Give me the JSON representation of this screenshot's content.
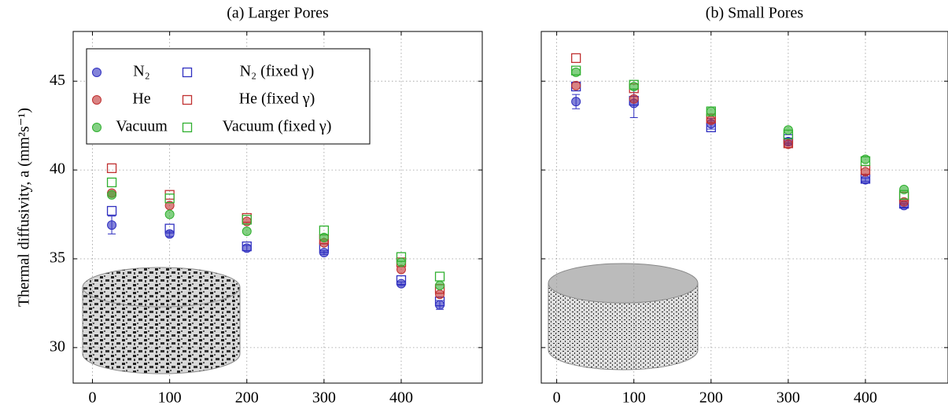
{
  "chart_data": [
    {
      "type": "scatter",
      "title": "(a) Larger Pores",
      "y_label": "Thermal diffusivity, a (mm²s⁻¹)",
      "x": [
        25,
        100,
        200,
        300,
        400,
        450
      ],
      "xlim": [
        -25,
        505
      ],
      "xticks": [
        0,
        100,
        200,
        300,
        400
      ],
      "ylim": [
        28,
        47.8
      ],
      "yticks": [
        30,
        35,
        40,
        45
      ],
      "show_ytick_labels": true,
      "grid": true,
      "legend": "upper left",
      "series": [
        {
          "name": "N₂",
          "color": "#3030c0",
          "marker": "circle",
          "values": [
            36.9,
            36.4,
            35.6,
            35.35,
            33.6,
            32.4
          ],
          "errors": [
            0.5,
            0.15,
            0.15,
            0.1,
            0.1,
            0.25
          ]
        },
        {
          "name": "N₂ (fixed γ)",
          "color": "#3030c0",
          "marker": "square",
          "values": [
            37.7,
            36.7,
            35.7,
            35.6,
            33.8,
            32.6
          ]
        },
        {
          "name": "He",
          "color": "#c03030",
          "marker": "circle",
          "values": [
            38.7,
            38.0,
            37.1,
            35.9,
            34.4,
            33.0
          ]
        },
        {
          "name": "He (fixed γ)",
          "color": "#c03030",
          "marker": "square",
          "values": [
            40.1,
            38.6,
            37.3,
            36.1,
            34.8,
            33.3
          ]
        },
        {
          "name": "Vacuum",
          "color": "#30b030",
          "marker": "circle",
          "values": [
            38.6,
            37.5,
            36.55,
            36.2,
            34.8,
            33.5
          ]
        },
        {
          "name": "Vacuum (fixed γ)",
          "color": "#30b030",
          "marker": "square",
          "values": [
            39.3,
            38.4,
            37.2,
            36.6,
            35.1,
            34.0
          ]
        }
      ]
    },
    {
      "type": "scatter",
      "title": "(b) Small Pores",
      "x": [
        25,
        100,
        200,
        300,
        400,
        450
      ],
      "xlim": [
        -20,
        507
      ],
      "xticks": [
        0,
        100,
        200,
        300,
        400
      ],
      "ylim": [
        28,
        47.8
      ],
      "yticks": [
        30,
        35,
        40,
        45
      ],
      "show_ytick_labels": false,
      "grid": true,
      "series": [
        {
          "color": "#3030c0",
          "marker": "circle",
          "values": [
            43.85,
            43.75,
            42.6,
            41.6,
            39.45,
            38.0
          ],
          "errors": [
            0.4,
            0.8,
            0.3,
            0.2,
            0.1,
            0.1
          ]
        },
        {
          "color": "#3030c0",
          "marker": "square",
          "values": [
            44.7,
            43.9,
            42.4,
            41.75,
            39.5,
            38.1
          ]
        },
        {
          "color": "#c03030",
          "marker": "circle",
          "values": [
            44.75,
            44.0,
            42.8,
            41.45,
            39.9,
            38.2
          ]
        },
        {
          "color": "#c03030",
          "marker": "square",
          "values": [
            46.3,
            44.6,
            42.9,
            41.5,
            40.0,
            38.5
          ]
        },
        {
          "color": "#30b030",
          "marker": "circle",
          "values": [
            45.5,
            44.7,
            43.3,
            42.25,
            40.6,
            38.9
          ]
        },
        {
          "color": "#30b030",
          "marker": "square",
          "values": [
            45.6,
            44.8,
            43.3,
            42.0,
            40.5,
            38.6
          ]
        }
      ]
    }
  ]
}
